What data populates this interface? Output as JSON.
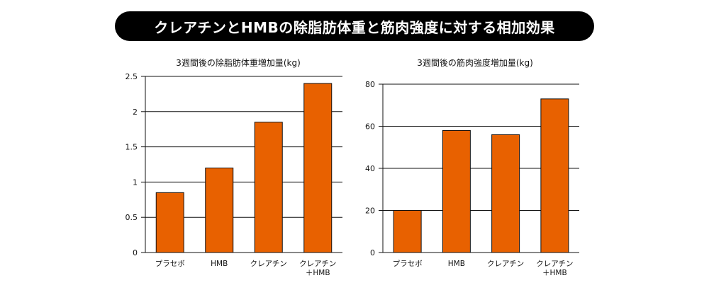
{
  "banner": {
    "title": "クレアチンとHMBの除脂肪体重と筋肉強度に対する相加効果"
  },
  "colors": {
    "bar": "#e86100",
    "bar_stroke": "#111111",
    "grid": "#111111",
    "banner_bg": "#000000",
    "banner_text": "#ffffff"
  },
  "chart_data": [
    {
      "type": "bar",
      "title": "3週間後の除脂肪体重増加量(kg)",
      "categories": [
        [
          "プラセボ"
        ],
        [
          "HMB"
        ],
        [
          "クレアチン"
        ],
        [
          "クレアチン",
          "＋HMB"
        ]
      ],
      "values": [
        0.85,
        1.2,
        1.85,
        2.4
      ],
      "yticks": [
        "0",
        "0.5",
        "1",
        "1.5",
        "2",
        "2.5"
      ],
      "ylim": [
        0,
        2.5
      ],
      "grid": true
    },
    {
      "type": "bar",
      "title": "3週間後の筋肉強度増加量(kg)",
      "categories": [
        [
          "プラセボ"
        ],
        [
          "HMB"
        ],
        [
          "クレアチン"
        ],
        [
          "クレアチン",
          "＋HMB"
        ]
      ],
      "values": [
        20,
        58,
        56,
        73
      ],
      "yticks": [
        "0",
        "20",
        "40",
        "60",
        "80"
      ],
      "ylim": [
        0,
        80
      ],
      "grid": true
    }
  ]
}
